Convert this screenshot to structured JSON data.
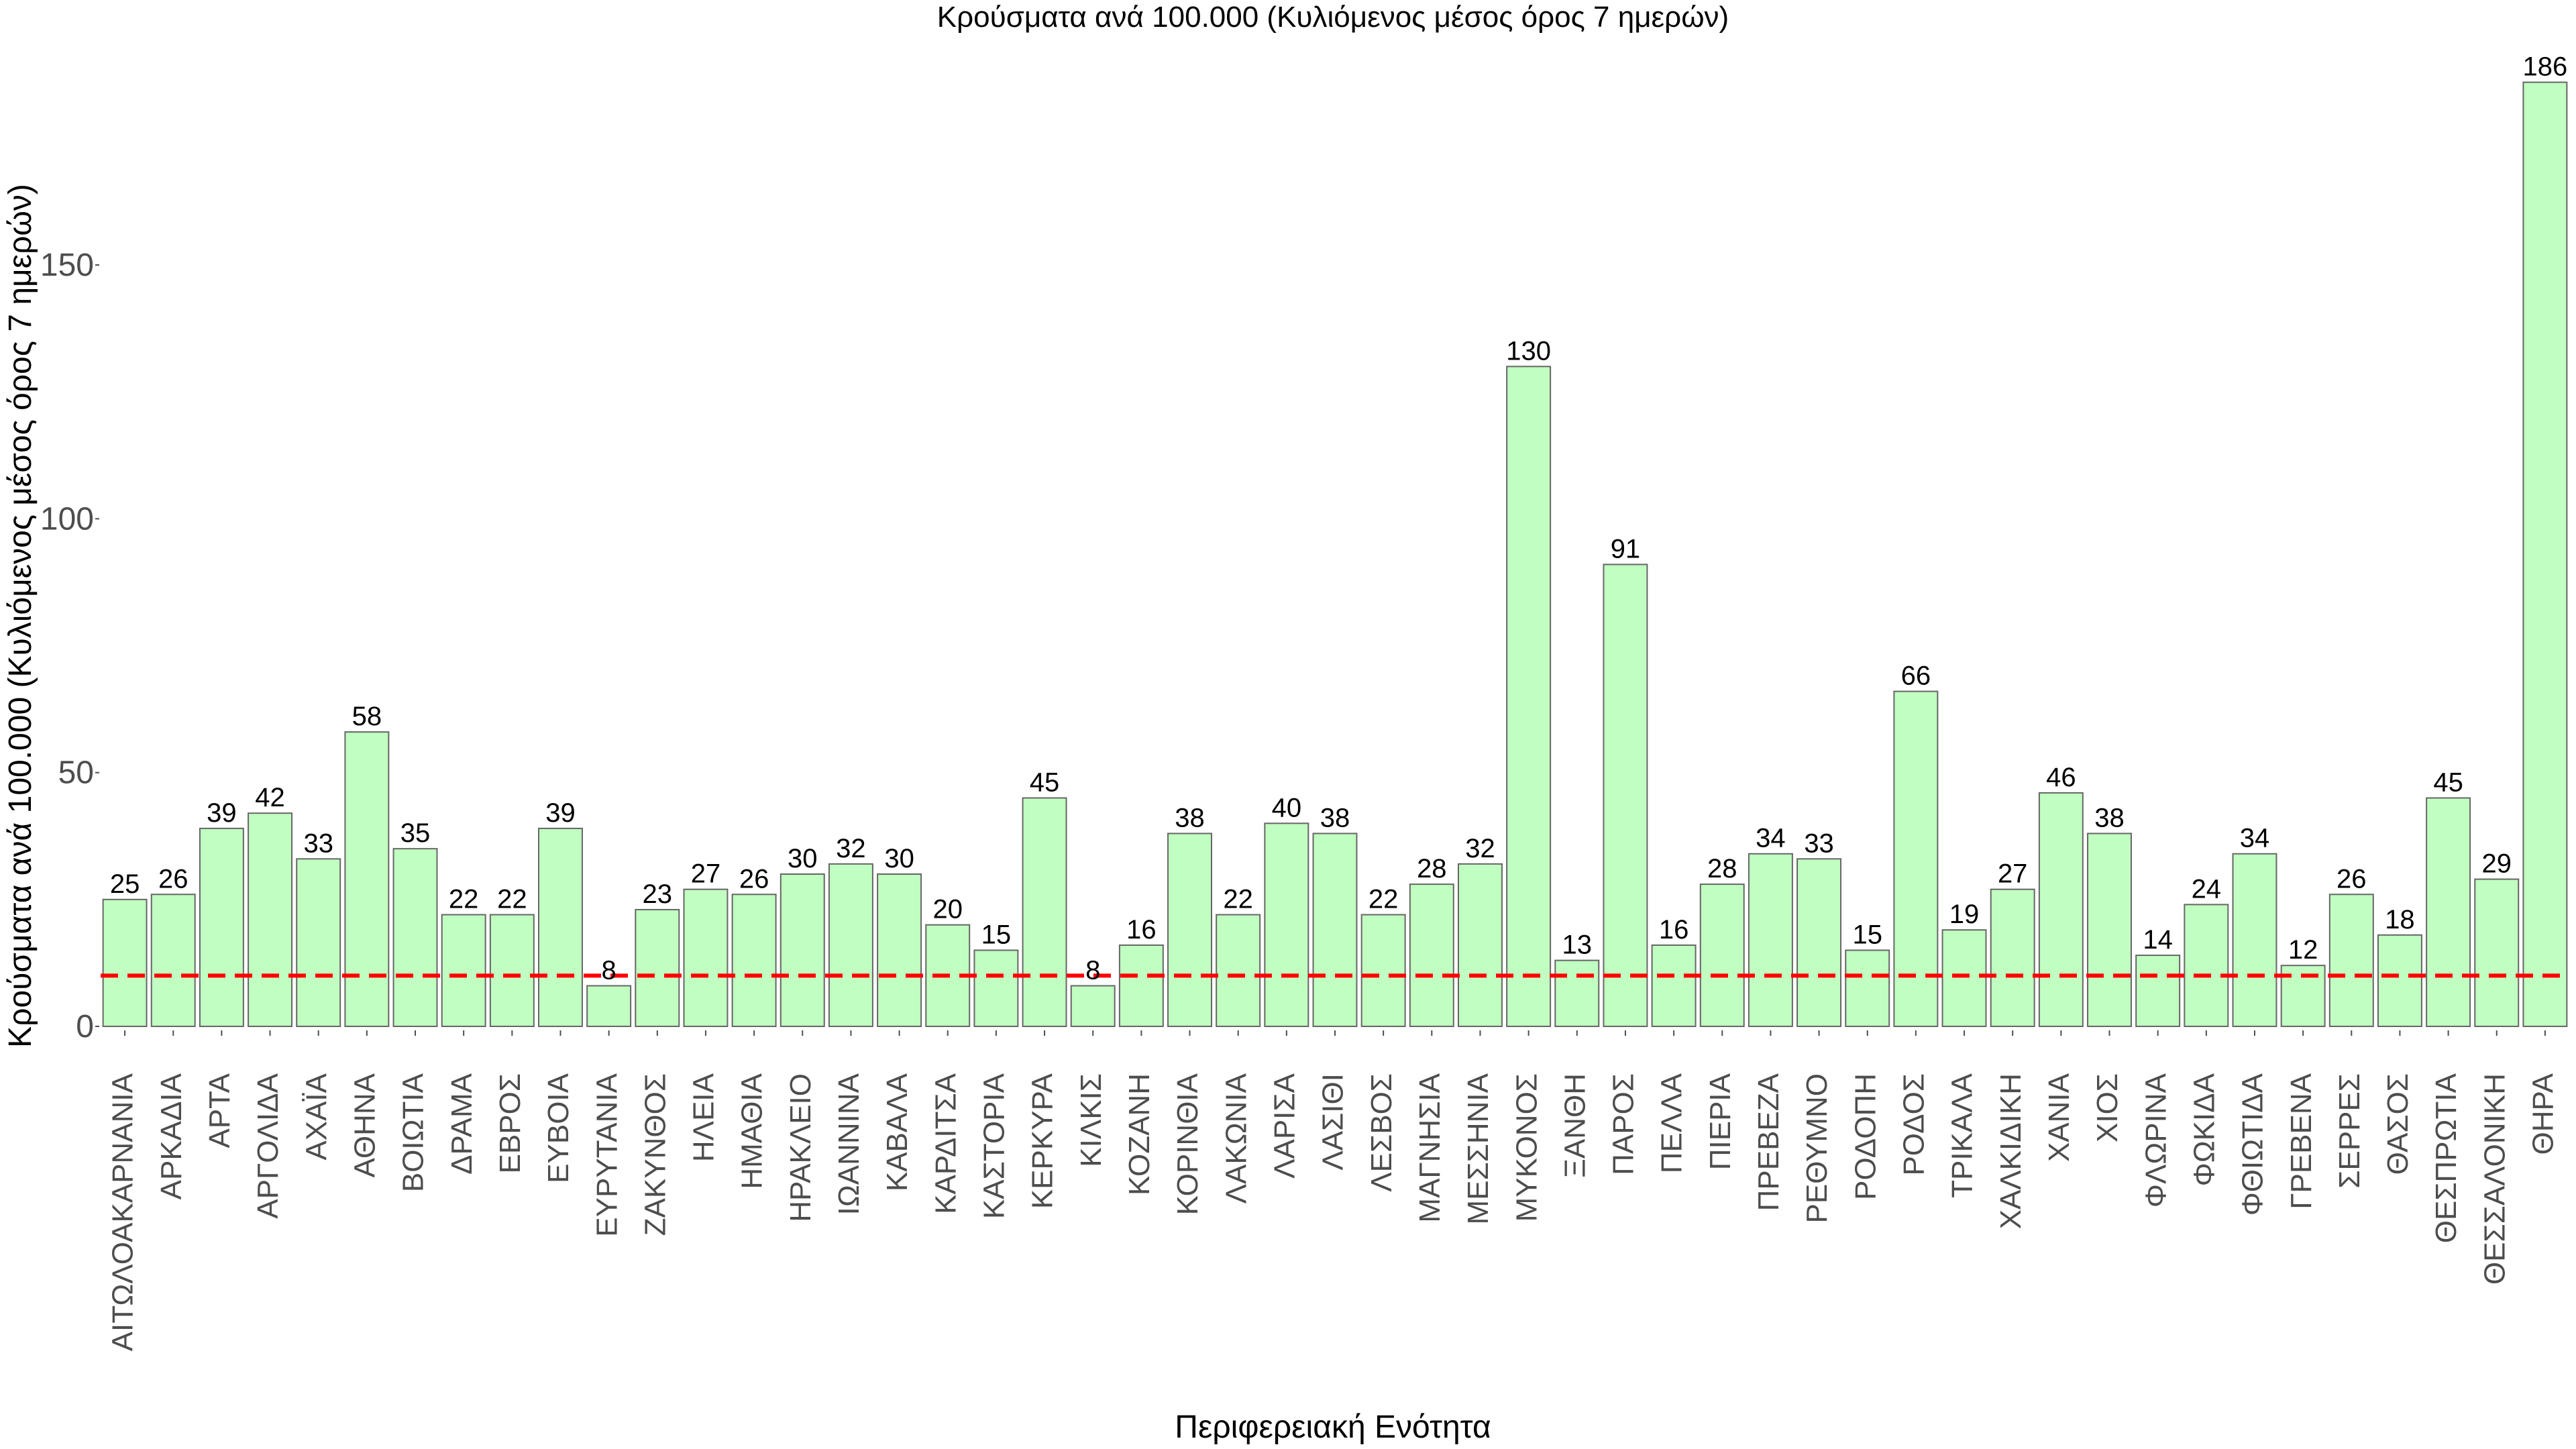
{
  "chart_data": {
    "type": "bar",
    "title": "Κρούσματα ανά 100.000 (Κυλιόμενος μέσος όρος 7 ημερών)",
    "xlabel": "Περιφερειακή Ενότητα",
    "ylabel": "Κρούσματα ανά 100.000 (Κυλιόμενος μέσος όρος 7 ημερών)",
    "ylim": [
      0,
      186
    ],
    "yticks": [
      0,
      50,
      100,
      150
    ],
    "grid": false,
    "bar_color": "#c1fec1",
    "reference_line": {
      "value": 10,
      "color": "#ff0000",
      "style": "dashed"
    },
    "categories": [
      "ΑΙΤΩΛΟΑΚΑΡΝΑΝΙΑ",
      "ΑΡΚΑΔΙΑ",
      "ΑΡΤΑ",
      "ΑΡΓΟΛΙΔΑ",
      "ΑΧΑΪΑ",
      "ΑΘΗΝΑ",
      "ΒΟΙΩΤΙΑ",
      "ΔΡΑΜΑ",
      "ΕΒΡΟΣ",
      "ΕΥΒΟΙΑ",
      "ΕΥΡΥΤΑΝΙΑ",
      "ΖΑΚΥΝΘΟΣ",
      "ΗΛΕΙΑ",
      "ΗΜΑΘΙΑ",
      "ΗΡΑΚΛΕΙΟ",
      "ΙΩΑΝΝΙΝΑ",
      "ΚΑΒΑΛΑ",
      "ΚΑΡΔΙΤΣΑ",
      "ΚΑΣΤΟΡΙΑ",
      "ΚΕΡΚΥΡΑ",
      "ΚΙΛΚΙΣ",
      "ΚΟΖΑΝΗ",
      "ΚΟΡΙΝΘΙΑ",
      "ΛΑΚΩΝΙΑ",
      "ΛΑΡΙΣΑ",
      "ΛΑΣΙΘΙ",
      "ΛΕΣΒΟΣ",
      "ΜΑΓΝΗΣΙΑ",
      "ΜΕΣΣΗΝΙΑ",
      "ΜΥΚΟΝΟΣ",
      "ΞΑΝΘΗ",
      "ΠΑΡΟΣ",
      "ΠΕΛΛΑ",
      "ΠΙΕΡΙΑ",
      "ΠΡΕΒΕΖΑ",
      "ΡΕΘΥΜΝΟ",
      "ΡΟΔΟΠΗ",
      "ΡΟΔΟΣ",
      "ΤΡΙΚΑΛΑ",
      "ΧΑΛΚΙΔΙΚΗ",
      "ΧΑΝΙΑ",
      "ΧΙΟΣ",
      "ΦΛΩΡΙΝΑ",
      "ΦΩΚΙΔΑ",
      "ΦΘΙΩΤΙΔΑ",
      "ΓΡΕΒΕΝΑ",
      "ΣΕΡΡΕΣ",
      "ΘΑΣΟΣ",
      "ΘΕΣΠΡΩΤΙΑ",
      "ΘΕΣΣΑΛΟΝΙΚΗ",
      "ΘΗΡΑ"
    ],
    "values": [
      25,
      26,
      39,
      42,
      33,
      58,
      35,
      22,
      22,
      39,
      8,
      23,
      27,
      26,
      30,
      32,
      30,
      20,
      15,
      45,
      8,
      16,
      38,
      22,
      40,
      38,
      22,
      28,
      32,
      130,
      13,
      91,
      16,
      28,
      34,
      33,
      15,
      66,
      19,
      27,
      46,
      38,
      14,
      24,
      34,
      12,
      26,
      18,
      45,
      29,
      186
    ]
  }
}
